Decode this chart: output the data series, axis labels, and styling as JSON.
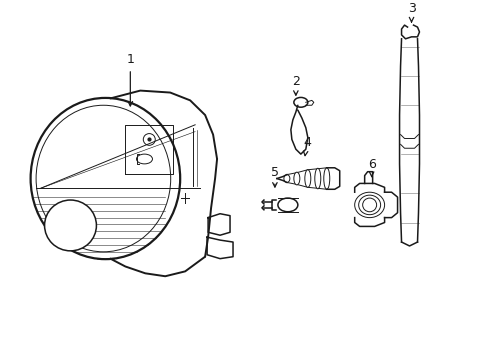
{
  "bg_color": "#ffffff",
  "line_color": "#1a1a1a",
  "line_width": 1.1,
  "thin_line": 0.7,
  "fig_width": 4.89,
  "fig_height": 3.6,
  "dpi": 100
}
